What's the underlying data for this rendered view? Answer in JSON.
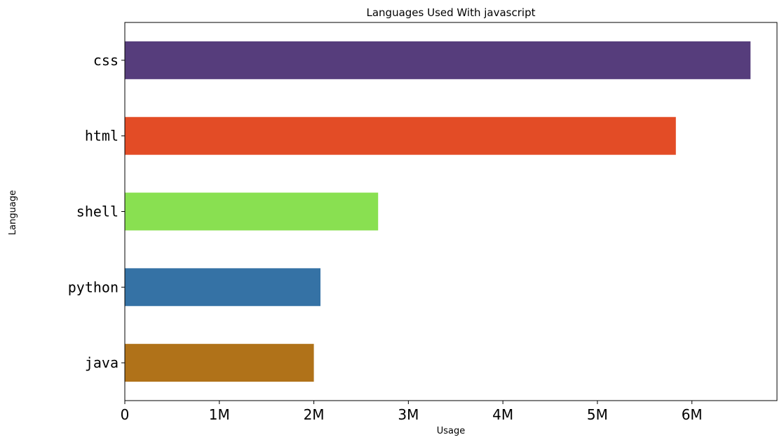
{
  "chart_data": {
    "type": "bar",
    "orientation": "horizontal",
    "title": "Languages Used With javascript",
    "xlabel": "Usage",
    "ylabel": "Language",
    "categories": [
      "java",
      "python",
      "shell",
      "html",
      "css"
    ],
    "values": [
      2000000,
      2070000,
      2680000,
      5830000,
      6620000
    ],
    "colors": [
      "#b07219",
      "#3572a5",
      "#89e051",
      "#e34c26",
      "#563d7c"
    ],
    "xlim": [
      0,
      6900000
    ],
    "xticks": [
      0,
      1000000,
      2000000,
      3000000,
      4000000,
      5000000,
      6000000
    ],
    "xtick_labels": [
      "0",
      "1M",
      "2M",
      "3M",
      "4M",
      "5M",
      "6M"
    ],
    "grid": false,
    "legend": null
  }
}
